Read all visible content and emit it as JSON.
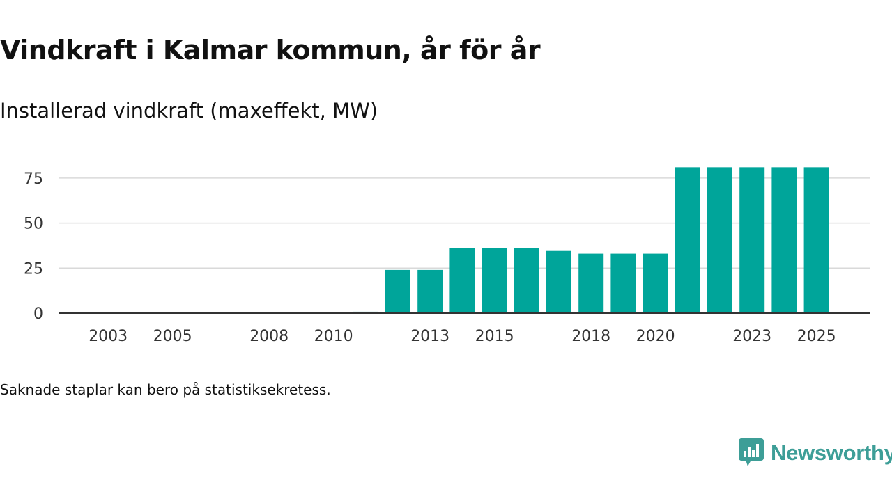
{
  "title": "Vindkraft i Kalmar kommun, år för år",
  "subtitle": "Installerad vindkraft (maxeffekt, MW)",
  "footnote": "Saknade staplar kan bero på statistiksekretess.",
  "brand": {
    "name": "Newsworthy",
    "color": "#3d9e97",
    "logo_icon": "newsworthy-logo-icon"
  },
  "colors": {
    "bar": "#00a59a",
    "grid": "#d9d9d9",
    "axis": "#333333",
    "tick_text": "#333333"
  },
  "chart_data": {
    "type": "bar",
    "title": "Vindkraft i Kalmar kommun, år för år",
    "subtitle": "Installerad vindkraft (maxeffekt, MW)",
    "xlabel": "",
    "ylabel": "",
    "categories": [
      "2002",
      "2003",
      "2004",
      "2005",
      "2006",
      "2007",
      "2008",
      "2009",
      "2010",
      "2011",
      "2012",
      "2013",
      "2014",
      "2015",
      "2016",
      "2017",
      "2018",
      "2019",
      "2020",
      "2021",
      "2022",
      "2023",
      "2024",
      "2025"
    ],
    "values": [
      0,
      0,
      0,
      0,
      0,
      0,
      0,
      0,
      0,
      0.8,
      24,
      24,
      36,
      36,
      36,
      34.5,
      33,
      33,
      33,
      81,
      81,
      81,
      81,
      81
    ],
    "x_tick_labels": [
      "2003",
      "2005",
      "2008",
      "2010",
      "2013",
      "2015",
      "2018",
      "2020",
      "2023",
      "2025"
    ],
    "y_ticks": [
      "0",
      "25",
      "50",
      "75"
    ],
    "ylim": [
      0,
      85
    ],
    "grid": true
  }
}
